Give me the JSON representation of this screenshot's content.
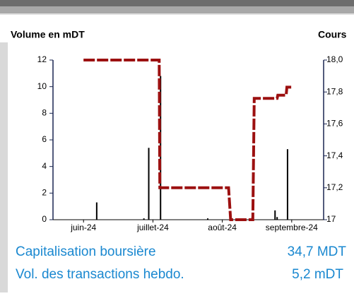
{
  "chart_data": {
    "type": "bar_line",
    "ylabel": "Volume en mDT",
    "y2label": "Cours",
    "xlim": [
      5.56,
      9.46
    ],
    "xticks": [
      {
        "value": 6,
        "label": "juin-24"
      },
      {
        "value": 7,
        "label": "juillet-24"
      },
      {
        "value": 8,
        "label": "août-24"
      },
      {
        "value": 9,
        "label": "septembre-24"
      }
    ],
    "ylim": [
      0,
      12
    ],
    "yticks": [
      0,
      2,
      4,
      6,
      8,
      10,
      12
    ],
    "y2lim": [
      17,
      18
    ],
    "y2ticks": [
      17,
      {
        "value": 17.2,
        "label": "17,2"
      },
      {
        "value": 17.4,
        "label": "17,4"
      },
      {
        "value": 17.6,
        "label": "17,6"
      },
      {
        "value": 17.8,
        "label": "17,8"
      },
      {
        "value": 18,
        "label": "18,0"
      }
    ],
    "series": [
      {
        "type": "bar",
        "color": "#000000",
        "x": [
          6.19,
          6.87,
          6.94,
          7.11,
          7.79,
          8.43,
          8.76,
          8.79,
          8.94
        ],
        "values": [
          1.3,
          0.1,
          5.4,
          10.8,
          0.1,
          0.2,
          0.7,
          0.2,
          5.3
        ]
      },
      {
        "type": "line",
        "axis": "y2",
        "color": "#9c1010",
        "x": [
          6.0,
          7.09,
          7.1,
          8.09,
          8.12,
          8.44,
          8.46,
          8.79,
          8.8,
          8.92,
          8.93,
          9.0
        ],
        "values": [
          18.0,
          18.0,
          17.2,
          17.2,
          17.0,
          17.0,
          17.76,
          17.76,
          17.78,
          17.78,
          17.83,
          17.83
        ]
      }
    ]
  },
  "metrics": [
    {
      "label": "Capitalisation boursière",
      "value": "34,7 MDT"
    },
    {
      "label": "Vol. des transactions hebdo.",
      "value": "5,2 mDT"
    }
  ]
}
